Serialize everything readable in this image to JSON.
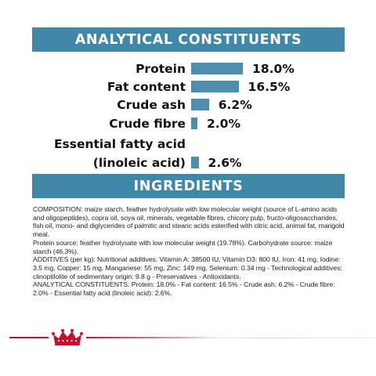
{
  "header": {
    "analytical_title": "ANALYTICAL CONSTITUENTS",
    "ingredients_title": "INGREDIENTS"
  },
  "constituents": [
    {
      "label": "Protein",
      "value": "18.0%",
      "percent": 18.0
    },
    {
      "label": "Fat content",
      "value": "16.5%",
      "percent": 16.5
    },
    {
      "label": "Crude ash",
      "value": "6.2%",
      "percent": 6.2
    },
    {
      "label": "Crude fibre",
      "value": "2.0%",
      "percent": 2.0
    },
    {
      "label_line1": "Essential fatty acid",
      "label": "(linoleic acid)",
      "value": "2.6%",
      "percent": 2.6
    }
  ],
  "ingredients": {
    "composition": "COMPOSITION: maize starch, feather hydrolysate with low molecular weight (source of L-amino acids and oligopeptides), copra oil, soya oil, minerals, vegetable fibres, chicory pulp, fructo-oligosaccharides, fish oil, mono- and diglycerides of palmitic and stearic acids esterified with citric acid, animal fat, marigold meal.",
    "protein_source": "Protein source: feather hydrolysate with low molecular weight (19.78%). Carbohydrate source: maize starch (46.3%).",
    "additives": "ADDITIVES (per kg): Nutritional additives: Vitamin A: 38500 IU, Vitamin D3: 800 IU, Iron: 41 mg, Iodine: 3.5 mg, Copper: 15 mg, Manganese: 55 mg, Zinc: 149 mg, Selenium: 0.34 mg - Technological additives: clinoptilolite of sedimentary origin: 9.8 g - Preservatives - Antioxidants.",
    "analytical": "ANALYTICAL CONSTITUENTS: Protein: 18.0% - Fat content: 16.5% - Crude ash: 6.2% - Crude fibre: 2.0% - Essential fatty acid (linoleic acid): 2.6%."
  },
  "colors": {
    "banner": "#3f88a8",
    "bar": "#4d8ead",
    "brand_red": "#c8102e"
  },
  "footer": {
    "logo": "crown-icon"
  }
}
